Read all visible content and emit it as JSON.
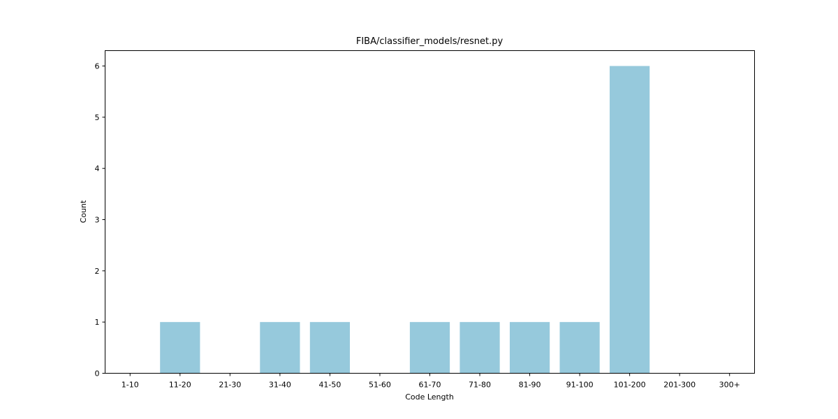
{
  "chart_data": {
    "type": "bar",
    "title": "FIBA/classifier_models/resnet.py",
    "xlabel": "Code Length",
    "ylabel": "Count",
    "categories": [
      "1-10",
      "11-20",
      "21-30",
      "31-40",
      "41-50",
      "51-60",
      "61-70",
      "71-80",
      "81-90",
      "91-100",
      "101-200",
      "201-300",
      "300+"
    ],
    "values": [
      0,
      1,
      0,
      1,
      1,
      0,
      1,
      1,
      1,
      1,
      6,
      0,
      0
    ],
    "yticks": [
      "0",
      "1",
      "2",
      "3",
      "4",
      "5",
      "6"
    ],
    "ylim": [
      0,
      6.3
    ],
    "grid": false,
    "bar_color": "#96c9dc"
  }
}
